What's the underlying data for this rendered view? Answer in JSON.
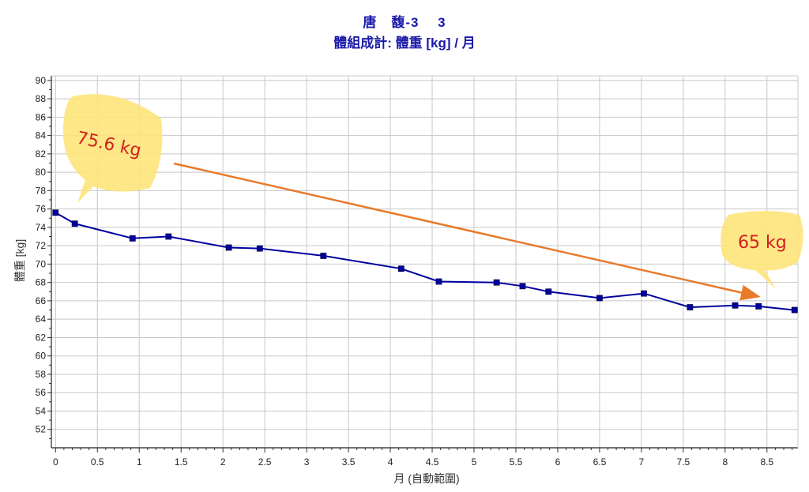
{
  "chart_data": {
    "type": "line",
    "title": "唐　馥-3　 3",
    "subtitle": "體組成計: 體重 [kg] / 月",
    "xlabel": "月 (自動範圍)",
    "ylabel": "體重 [kg]",
    "xlim": [
      -0.05,
      8.87
    ],
    "ylim": [
      50,
      90.5
    ],
    "xticks": [
      "0",
      "0.5",
      "1",
      "1.5",
      "2",
      "2.5",
      "3",
      "3.5",
      "4",
      "4.5",
      "5",
      "5.5",
      "6",
      "6.5",
      "7",
      "7.5",
      "8",
      "8.5"
    ],
    "yticks": [
      "52",
      "54",
      "56",
      "58",
      "60",
      "62",
      "64",
      "66",
      "68",
      "70",
      "72",
      "74",
      "76",
      "78",
      "80",
      "82",
      "84",
      "86",
      "88",
      "90"
    ],
    "grid": true,
    "series": [
      {
        "color": "#0000a0",
        "x": [
          0,
          0.23,
          0.92,
          1.35,
          2.07,
          2.44,
          3.2,
          4.13,
          4.58,
          5.27,
          5.58,
          5.89,
          6.5,
          7.03,
          7.58,
          8.12,
          8.4,
          8.83
        ],
        "y": [
          75.6,
          74.4,
          72.8,
          73.0,
          71.8,
          71.7,
          70.9,
          69.5,
          68.1,
          68.0,
          67.6,
          67.0,
          66.3,
          66.8,
          65.3,
          65.5,
          65.4,
          65.0
        ]
      }
    ],
    "annotations": [
      {
        "text": "75.6 kg",
        "color": "#d31f1f",
        "bubble_color": "#fde47a"
      },
      {
        "text": "65 kg",
        "color": "#d31f1f",
        "bubble_color": "#fde47a"
      }
    ],
    "trend_arrow_color": "#e87a2a"
  }
}
